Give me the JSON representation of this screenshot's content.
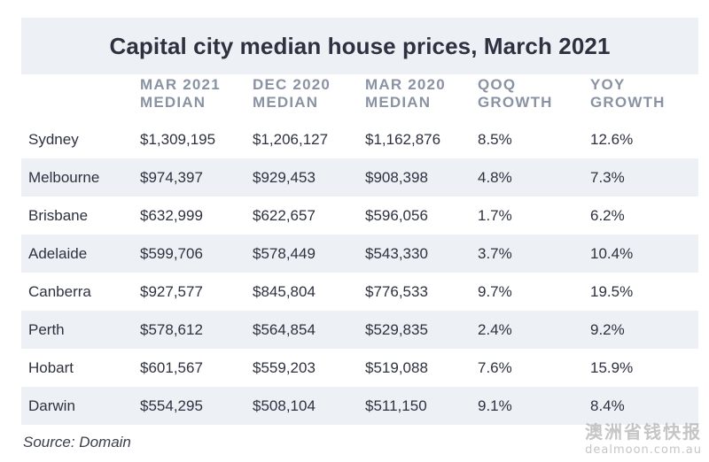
{
  "title": "Capital city median house prices, March 2021",
  "columns": [
    {
      "line1": "",
      "line2": ""
    },
    {
      "line1": "MAR 2021",
      "line2": "MEDIAN"
    },
    {
      "line1": "DEC 2020",
      "line2": "MEDIAN"
    },
    {
      "line1": "MAR 2020",
      "line2": "MEDIAN"
    },
    {
      "line1": "QOQ",
      "line2": "GROWTH"
    },
    {
      "line1": "YOY",
      "line2": "GROWTH"
    }
  ],
  "rows": [
    [
      "Sydney",
      "$1,309,195",
      "$1,206,127",
      "$1,162,876",
      "8.5%",
      "12.6%"
    ],
    [
      "Melbourne",
      "$974,397",
      "$929,453",
      "$908,398",
      "4.8%",
      "7.3%"
    ],
    [
      "Brisbane",
      "$632,999",
      "$622,657",
      "$596,056",
      "1.7%",
      "6.2%"
    ],
    [
      "Adelaide",
      "$599,706",
      "$578,449",
      "$543,330",
      "3.7%",
      "10.4%"
    ],
    [
      "Canberra",
      "$927,577",
      "$845,804",
      "$776,533",
      "9.7%",
      "19.5%"
    ],
    [
      "Perth",
      "$578,612",
      "$564,854",
      "$529,835",
      "2.4%",
      "9.2%"
    ],
    [
      "Hobart",
      "$601,567",
      "$559,203",
      "$519,088",
      "7.6%",
      "15.9%"
    ],
    [
      "Darwin",
      "$554,295",
      "$508,104",
      "$511,150",
      "9.1%",
      "8.4%"
    ]
  ],
  "source": "Source: Domain",
  "watermark": {
    "text": "澳洲省钱快报",
    "url": "dealmoon.com.au"
  }
}
